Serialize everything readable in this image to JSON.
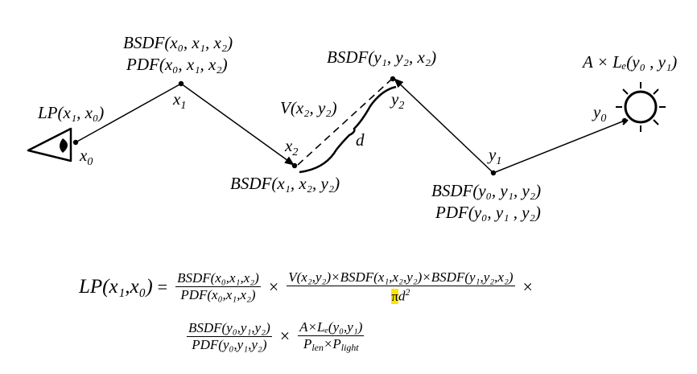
{
  "labels": {
    "lp_x1_x0": "LP(x₁, x₀)",
    "x0": "x",
    "x0_sub": "0",
    "bsdf_x0x1x2": "BSDF(x₀, x₁, x₂)",
    "pdf_x0x1x2": "PDF(x₀, x₁, x₂)",
    "x1": "x",
    "x1_sub": "1",
    "v_x2y2": "V(x₂, y₂)",
    "x2": "x",
    "x2_sub": "2",
    "d": "d",
    "bsdf_x1x2y2": "BSDF(x₁, x₂, y₂)",
    "bsdf_y1y2x2": "BSDF(y₁, y₂, x₂)",
    "y2": "y",
    "y2_sub": "2",
    "y1": "y",
    "y1_sub": "1",
    "bsdf_y0y1y2": "BSDF(y₀, y₁, y₂)",
    "pdf_y0y1y2": "PDF(y₀, y₁ , y₂)",
    "a_le_y0y1": "A × Lₑ(y₀ , y₁)",
    "y0": "y",
    "y0_sub": "0"
  },
  "formula": {
    "lhs": "LP(x₁,x₀)",
    "equals": "=",
    "times": "×",
    "f1_num": "BSDF(x₀,x₁,x₂)",
    "f1_den": "PDF(x₀,x₁,x₂)",
    "f2_num": "V(x₂,y₂)×BSDF(x₁,x₂,y₂)×BSDF(y₁,y₂,x₂)",
    "f2_den_pi": "π",
    "f2_den_d": "d",
    "f2_den_exp": "2",
    "f3_num": "BSDF(y₀,y₁,y₂)",
    "f3_den": "PDF(y₀,y₁,y₂)",
    "f4_num": "A×Lₑ(y₀,y₁)",
    "f4_den": "P_len×P_light",
    "f4_den_a": "P",
    "f4_den_a_sub": "len",
    "f4_den_b": "P",
    "f4_den_b_sub": "light"
  },
  "colors": {
    "highlight": "#ffe500"
  },
  "icons": {
    "eye": "eye-icon",
    "light": "sun-icon"
  }
}
